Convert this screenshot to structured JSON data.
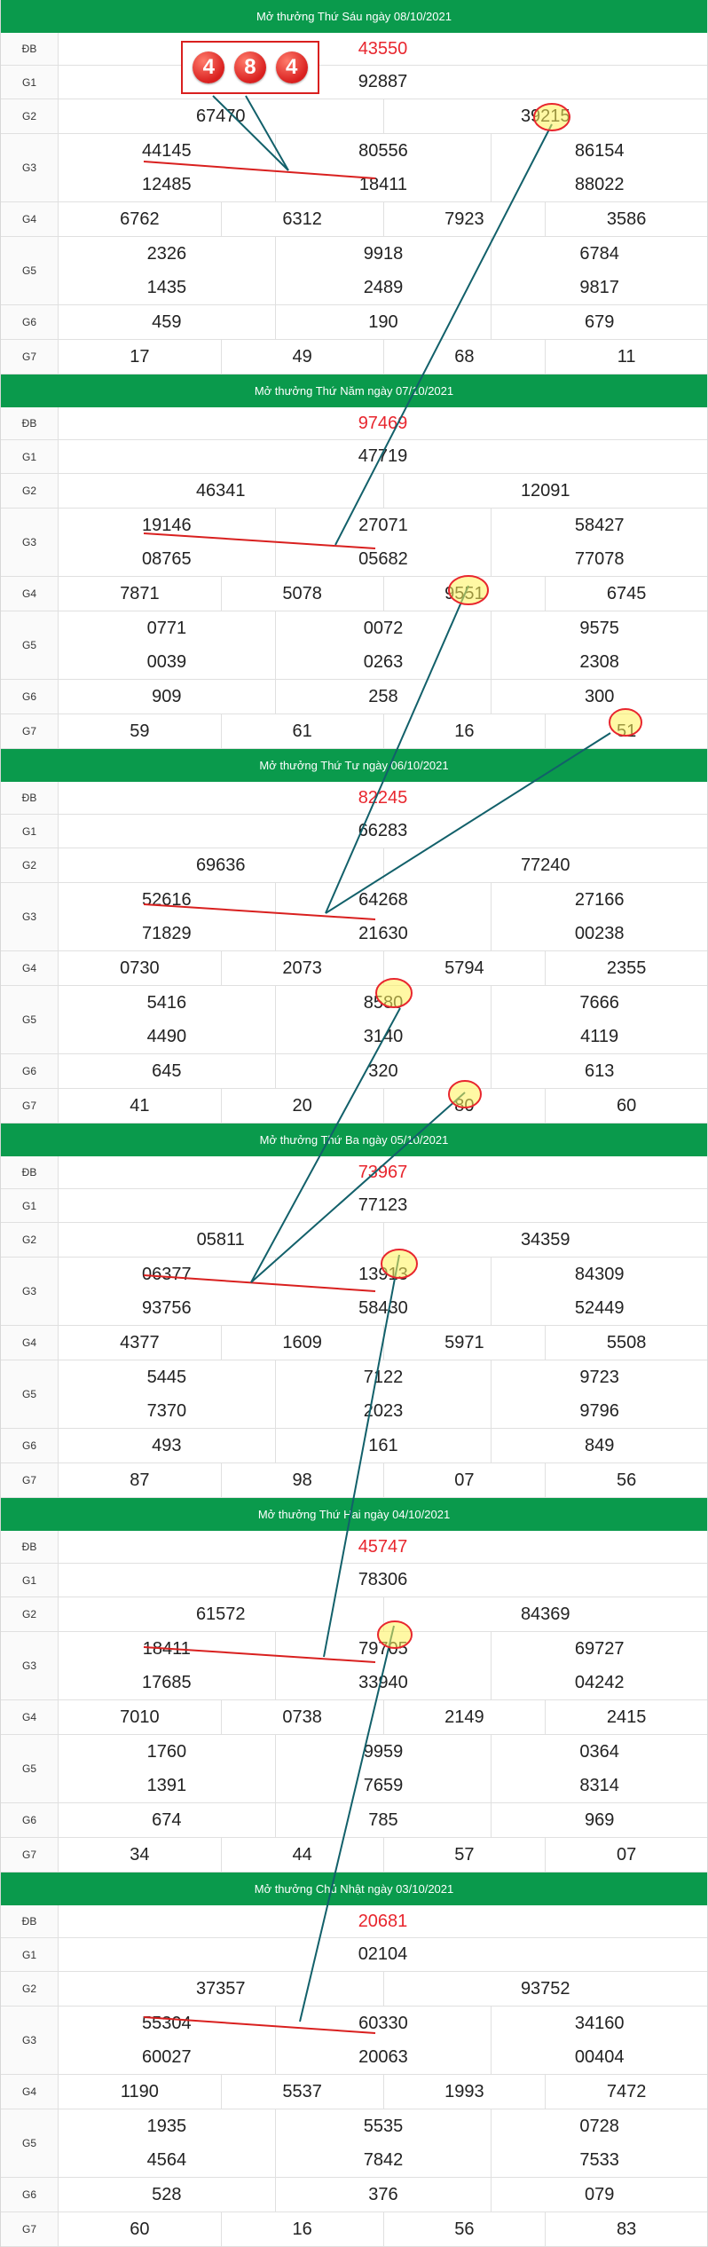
{
  "balls": [
    "4",
    "8",
    "4"
  ],
  "labels": {
    "db": "ĐB",
    "g1": "G1",
    "g2": "G2",
    "g3": "G3",
    "g4": "G4",
    "g5": "G5",
    "g6": "G6",
    "g7": "G7"
  },
  "colors": {
    "header": "#0a9a4c",
    "special": "#e8262e",
    "circle_fill": "#fff35a",
    "circle_stroke": "#e8262e",
    "line_red": "#d9201f",
    "line_teal": "#12606a"
  },
  "draws": [
    {
      "title": "Mở thưởng Thứ Sáu ngày 08/10/2021",
      "db": "43550",
      "g1": "92887",
      "g2": [
        "67470",
        "39215"
      ],
      "g3": [
        "44145",
        "80556",
        "86154",
        "12485",
        "18411",
        "88022"
      ],
      "g4": [
        "6762",
        "6312",
        "7923",
        "3586"
      ],
      "g5": [
        "2326",
        "9918",
        "6784",
        "1435",
        "2489",
        "9817"
      ],
      "g6": [
        "459",
        "190",
        "679"
      ],
      "g7": [
        "17",
        "49",
        "68",
        "11"
      ]
    },
    {
      "title": "Mở thưởng Thứ Năm ngày 07/10/2021",
      "db": "97469",
      "g1": "47719",
      "g2": [
        "46341",
        "12091"
      ],
      "g3": [
        "19146",
        "27071",
        "58427",
        "08765",
        "05682",
        "77078"
      ],
      "g4": [
        "7871",
        "5078",
        "9551",
        "6745"
      ],
      "g5": [
        "0771",
        "0072",
        "9575",
        "0039",
        "0263",
        "2308"
      ],
      "g6": [
        "909",
        "258",
        "300"
      ],
      "g7": [
        "59",
        "61",
        "16",
        "51"
      ]
    },
    {
      "title": "Mở thưởng Thứ Tư ngày 06/10/2021",
      "db": "82245",
      "g1": "66283",
      "g2": [
        "69636",
        "77240"
      ],
      "g3": [
        "52616",
        "64268",
        "27166",
        "71829",
        "21630",
        "00238"
      ],
      "g4": [
        "0730",
        "2073",
        "5794",
        "2355"
      ],
      "g5": [
        "5416",
        "8580",
        "7666",
        "4490",
        "3140",
        "4119"
      ],
      "g6": [
        "645",
        "320",
        "613"
      ],
      "g7": [
        "41",
        "20",
        "80",
        "60"
      ]
    },
    {
      "title": "Mở thưởng Thứ Ba ngày 05/10/2021",
      "db": "73967",
      "g1": "77123",
      "g2": [
        "05811",
        "34359"
      ],
      "g3": [
        "06377",
        "13913",
        "84309",
        "93756",
        "58430",
        "52449"
      ],
      "g4": [
        "4377",
        "1609",
        "5971",
        "5508"
      ],
      "g5": [
        "5445",
        "7122",
        "9723",
        "7370",
        "2023",
        "9796"
      ],
      "g6": [
        "493",
        "161",
        "849"
      ],
      "g7": [
        "87",
        "98",
        "07",
        "56"
      ]
    },
    {
      "title": "Mở thưởng Thứ Hai ngày 04/10/2021",
      "db": "45747",
      "g1": "78306",
      "g2": [
        "61572",
        "84369"
      ],
      "g3": [
        "18411",
        "79705",
        "69727",
        "17685",
        "33940",
        "04242"
      ],
      "g4": [
        "7010",
        "0738",
        "2149",
        "2415"
      ],
      "g5": [
        "1760",
        "9959",
        "0364",
        "1391",
        "7659",
        "8314"
      ],
      "g6": [
        "674",
        "785",
        "969"
      ],
      "g7": [
        "34",
        "44",
        "57",
        "07"
      ]
    },
    {
      "title": "Mở thưởng Chủ Nhật ngày 03/10/2021",
      "db": "20681",
      "g1": "02104",
      "g2": [
        "37357",
        "93752"
      ],
      "g3": [
        "55304",
        "60330",
        "34160",
        "60027",
        "20063",
        "00404"
      ],
      "g4": [
        "1190",
        "5537",
        "1993",
        "7472"
      ],
      "g5": [
        "1935",
        "5535",
        "0728",
        "4564",
        "7842",
        "7533"
      ],
      "g6": [
        "528",
        "376",
        "079"
      ],
      "g7": [
        "60",
        "16",
        "56",
        "83"
      ]
    }
  ]
}
